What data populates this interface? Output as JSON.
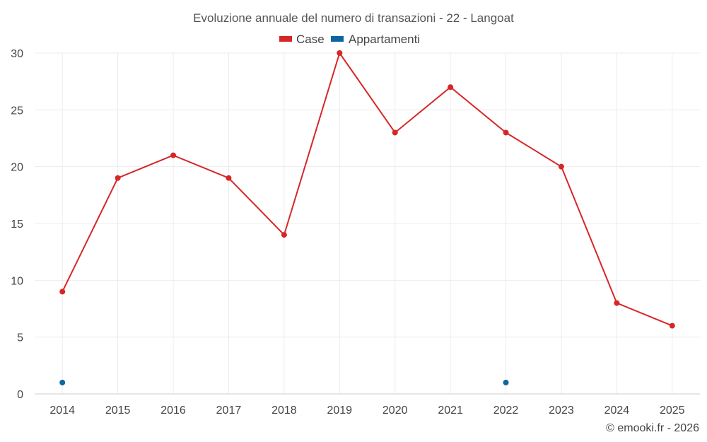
{
  "chart_data": {
    "type": "line",
    "title": "Evoluzione annuale del numero di transazioni - 22 - Langoat",
    "categories": [
      "2014",
      "2015",
      "2016",
      "2017",
      "2018",
      "2019",
      "2020",
      "2021",
      "2022",
      "2023",
      "2024",
      "2025"
    ],
    "ylim": [
      0,
      30
    ],
    "yticks": [
      0,
      5,
      10,
      15,
      20,
      25,
      30
    ],
    "grid": true,
    "legend_position": "top-center",
    "series": [
      {
        "name": "Case",
        "color": "#d62728",
        "values": [
          9,
          19,
          21,
          19,
          14,
          30,
          23,
          27,
          23,
          20,
          8,
          6
        ]
      },
      {
        "name": "Appartamenti",
        "color": "#0e66a0",
        "values": [
          1,
          null,
          null,
          null,
          null,
          null,
          null,
          null,
          1,
          null,
          null,
          null
        ]
      }
    ],
    "credit": "© emooki.fr - 2026"
  }
}
